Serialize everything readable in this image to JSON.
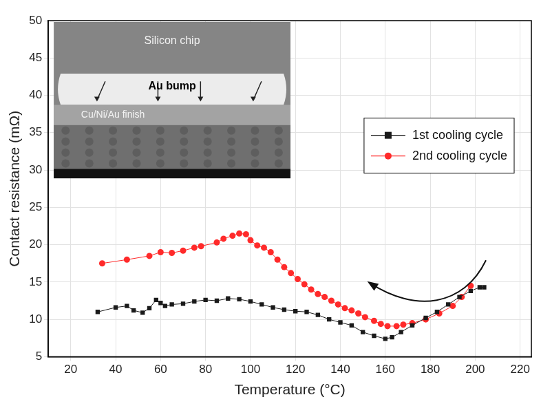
{
  "chart_data": {
    "type": "scatter",
    "x_label": "Temperature (°C)",
    "y_label": "Contact resistance (mΩ)",
    "xlim": [
      10,
      225
    ],
    "xticks": [
      20,
      40,
      60,
      80,
      100,
      120,
      140,
      160,
      180,
      200,
      220
    ],
    "ylim": [
      5,
      50
    ],
    "yticks": [
      5,
      10,
      15,
      20,
      25,
      30,
      35,
      40,
      45,
      50
    ],
    "grid": true,
    "legend": "upper right",
    "line_style": "solid",
    "annotations": [
      "Silicon chip",
      "Au bump",
      "Cu/Ni/Au finish"
    ],
    "series": [
      {
        "name": "1st cooling cycle",
        "color": "#1a1a1a",
        "marker": "square",
        "x": [
          32,
          40,
          45,
          48,
          52,
          55,
          58,
          60,
          62,
          65,
          70,
          75,
          80,
          85,
          90,
          95,
          100,
          105,
          110,
          115,
          120,
          125,
          130,
          135,
          140,
          145,
          150,
          155,
          160,
          163,
          167,
          172,
          178,
          183,
          188,
          193,
          198,
          202,
          204
        ],
        "values": [
          11,
          11.6,
          11.8,
          11.2,
          10.9,
          11.5,
          12.6,
          12.2,
          11.8,
          12,
          12.1,
          12.4,
          12.6,
          12.5,
          12.8,
          12.7,
          12.4,
          12,
          11.6,
          11.3,
          11.1,
          11,
          10.6,
          10,
          9.6,
          9.2,
          8.3,
          7.8,
          7.4,
          7.6,
          8.3,
          9.2,
          10.2,
          11,
          12,
          13,
          13.8,
          14.3,
          14.3
        ]
      },
      {
        "name": "2nd cooling cycle",
        "color": "#ff2a2a",
        "marker": "circle",
        "x": [
          34,
          45,
          55,
          60,
          65,
          70,
          75,
          78,
          85,
          88,
          92,
          95,
          98,
          100,
          103,
          106,
          109,
          112,
          115,
          118,
          121,
          124,
          127,
          130,
          133,
          136,
          139,
          142,
          145,
          148,
          151,
          155,
          158,
          161,
          165,
          168,
          172,
          178,
          184,
          190,
          194,
          198
        ],
        "values": [
          17.5,
          18,
          18.5,
          19,
          18.9,
          19.2,
          19.6,
          19.8,
          20.3,
          20.8,
          21.2,
          21.5,
          21.4,
          20.6,
          19.9,
          19.6,
          19,
          18,
          17,
          16.2,
          15.4,
          14.7,
          14,
          13.4,
          13,
          12.5,
          12,
          11.5,
          11.2,
          10.8,
          10.3,
          9.8,
          9.4,
          9.1,
          9.1,
          9.3,
          9.5,
          10,
          10.8,
          11.8,
          13,
          14.5
        ]
      }
    ]
  }
}
